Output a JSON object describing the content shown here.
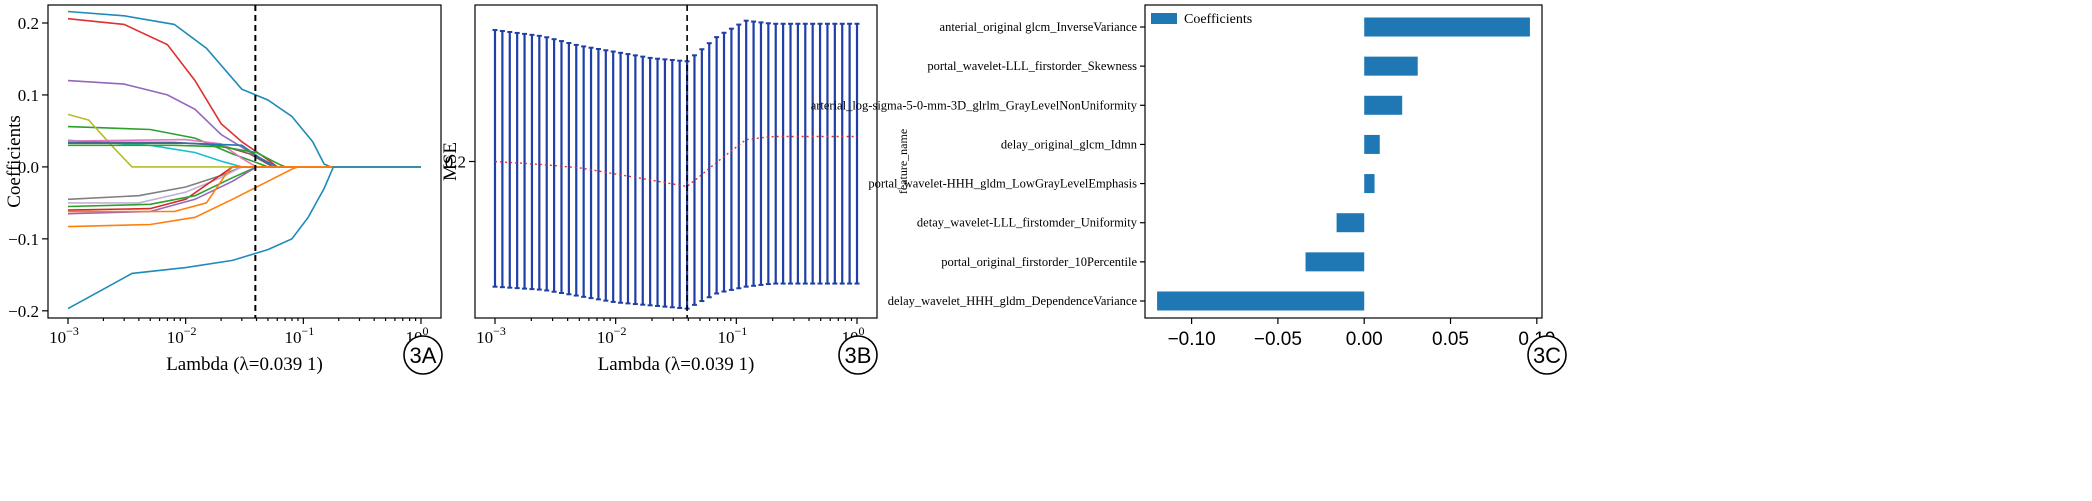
{
  "chart_data": [
    {
      "panel": "3A",
      "type": "line",
      "xscale": "log",
      "xlabel": "Lambda (λ=0.039 1)",
      "ylabel": "Coefficients",
      "xlim": [
        0.001,
        1
      ],
      "ylim": [
        -0.21,
        0.225
      ],
      "xticks": [
        {
          "value": 0.001,
          "base": "10",
          "exp": "−3"
        },
        {
          "value": 0.01,
          "base": "10",
          "exp": "−2"
        },
        {
          "value": 0.1,
          "base": "10",
          "exp": "−1"
        },
        {
          "value": 1,
          "base": "10",
          "exp": "0"
        }
      ],
      "yticks": [
        {
          "value": 0.2,
          "label": "0.2"
        },
        {
          "value": 0.1,
          "label": "0.1"
        },
        {
          "value": 0.0,
          "label": "0.0"
        },
        {
          "value": -0.1,
          "label": "−0.1"
        },
        {
          "value": -0.2,
          "label": "−0.2"
        }
      ],
      "vline": 0.0391,
      "series": [
        {
          "color": "#1f8bb8",
          "points": [
            [
              0.001,
              0.216
            ],
            [
              0.003,
              0.21
            ],
            [
              0.008,
              0.198
            ],
            [
              0.015,
              0.165
            ],
            [
              0.03,
              0.108
            ],
            [
              0.05,
              0.093
            ],
            [
              0.08,
              0.07
            ],
            [
              0.12,
              0.035
            ],
            [
              0.15,
              0.004
            ],
            [
              0.17,
              0
            ],
            [
              1,
              0
            ]
          ]
        },
        {
          "color": "#e03131",
          "points": [
            [
              0.001,
              0.206
            ],
            [
              0.003,
              0.198
            ],
            [
              0.007,
              0.17
            ],
            [
              0.012,
              0.12
            ],
            [
              0.02,
              0.06
            ],
            [
              0.03,
              0.035
            ],
            [
              0.05,
              0.01
            ],
            [
              0.06,
              0
            ],
            [
              1,
              0
            ]
          ]
        },
        {
          "color": "#9467bd",
          "points": [
            [
              0.001,
              0.12
            ],
            [
              0.003,
              0.115
            ],
            [
              0.007,
              0.1
            ],
            [
              0.012,
              0.08
            ],
            [
              0.02,
              0.045
            ],
            [
              0.04,
              0.015
            ],
            [
              0.06,
              0
            ],
            [
              1,
              0
            ]
          ]
        },
        {
          "color": "#2ca02c",
          "points": [
            [
              0.001,
              0.056
            ],
            [
              0.005,
              0.052
            ],
            [
              0.012,
              0.04
            ],
            [
              0.025,
              0.018
            ],
            [
              0.04,
              0.006
            ],
            [
              0.05,
              0
            ],
            [
              1,
              0
            ]
          ]
        },
        {
          "color": "#b5bd2a",
          "points": [
            [
              0.001,
              0.073
            ],
            [
              0.0015,
              0.065
            ],
            [
              0.0025,
              0.025
            ],
            [
              0.0035,
              0
            ],
            [
              1,
              0
            ]
          ]
        },
        {
          "color": "#17becf",
          "points": [
            [
              0.001,
              0.037
            ],
            [
              0.005,
              0.03
            ],
            [
              0.012,
              0.02
            ],
            [
              0.02,
              0.008
            ],
            [
              0.03,
              0
            ],
            [
              1,
              0
            ]
          ]
        },
        {
          "color": "#8c564b",
          "points": [
            [
              0.001,
              0.034
            ],
            [
              0.008,
              0.034
            ],
            [
              0.02,
              0.03
            ],
            [
              0.035,
              0.018
            ],
            [
              0.05,
              0.004
            ],
            [
              0.055,
              0
            ],
            [
              1,
              0
            ]
          ]
        },
        {
          "color": "#e377c2",
          "points": [
            [
              0.001,
              0.036
            ],
            [
              0.01,
              0.038
            ],
            [
              0.02,
              0.032
            ],
            [
              0.03,
              0.012
            ],
            [
              0.04,
              0
            ],
            [
              1,
              0
            ]
          ]
        },
        {
          "color": "#1f77b4",
          "points": [
            [
              0.001,
              0.033
            ],
            [
              0.01,
              0.033
            ],
            [
              0.03,
              0.03
            ],
            [
              0.045,
              0.01
            ],
            [
              0.06,
              0
            ],
            [
              1,
              0
            ]
          ]
        },
        {
          "color": "#2ca02c",
          "points": [
            [
              0.001,
              0.03
            ],
            [
              0.008,
              0.03
            ],
            [
              0.02,
              0.028
            ],
            [
              0.04,
              0.02
            ],
            [
              0.06,
              0.005
            ],
            [
              0.07,
              0
            ],
            [
              1,
              0
            ]
          ]
        },
        {
          "color": "#7f7f7f",
          "points": [
            [
              0.001,
              -0.045
            ],
            [
              0.004,
              -0.04
            ],
            [
              0.01,
              -0.028
            ],
            [
              0.02,
              -0.012
            ],
            [
              0.03,
              0
            ],
            [
              1,
              0
            ]
          ]
        },
        {
          "color": "#c5b0d5",
          "points": [
            [
              0.001,
              -0.05
            ],
            [
              0.004,
              -0.05
            ],
            [
              0.01,
              -0.035
            ],
            [
              0.02,
              -0.015
            ],
            [
              0.03,
              0
            ],
            [
              1,
              0
            ]
          ]
        },
        {
          "color": "#d62728",
          "points": [
            [
              0.001,
              -0.06
            ],
            [
              0.005,
              -0.058
            ],
            [
              0.01,
              -0.045
            ],
            [
              0.015,
              -0.025
            ],
            [
              0.025,
              0
            ],
            [
              1,
              0
            ]
          ]
        },
        {
          "color": "#2ca02c",
          "points": [
            [
              0.001,
              -0.055
            ],
            [
              0.005,
              -0.052
            ],
            [
              0.012,
              -0.04
            ],
            [
              0.025,
              -0.015
            ],
            [
              0.04,
              0
            ],
            [
              1,
              0
            ]
          ]
        },
        {
          "color": "#9467bd",
          "points": [
            [
              0.001,
              -0.065
            ],
            [
              0.005,
              -0.062
            ],
            [
              0.012,
              -0.045
            ],
            [
              0.025,
              -0.02
            ],
            [
              0.04,
              0
            ],
            [
              1,
              0
            ]
          ]
        },
        {
          "color": "#ff7f0e",
          "points": [
            [
              0.001,
              -0.062
            ],
            [
              0.008,
              -0.062
            ],
            [
              0.015,
              -0.05
            ],
            [
              0.022,
              -0.01
            ],
            [
              0.025,
              0
            ],
            [
              1,
              0
            ]
          ]
        },
        {
          "color": "#ff7f0e",
          "points": [
            [
              0.001,
              -0.083
            ],
            [
              0.005,
              -0.08
            ],
            [
              0.012,
              -0.07
            ],
            [
              0.025,
              -0.045
            ],
            [
              0.05,
              -0.02
            ],
            [
              0.08,
              -0.003
            ],
            [
              0.09,
              0
            ],
            [
              1,
              0
            ]
          ]
        },
        {
          "color": "#1f8bb8",
          "points": [
            [
              0.001,
              -0.197
            ],
            [
              0.002,
              -0.17
            ],
            [
              0.0035,
              -0.148
            ],
            [
              0.01,
              -0.14
            ],
            [
              0.025,
              -0.13
            ],
            [
              0.05,
              -0.115
            ],
            [
              0.08,
              -0.1
            ],
            [
              0.11,
              -0.07
            ],
            [
              0.15,
              -0.03
            ],
            [
              0.18,
              0
            ],
            [
              1,
              0
            ]
          ]
        }
      ]
    },
    {
      "panel": "3B",
      "type": "errorbar",
      "xscale": "log",
      "xlabel": "Lambda (λ=0.039 1)",
      "ylabel": "MSE",
      "xlim": [
        0.001,
        1
      ],
      "ylim": [
        0.15,
        0.25
      ],
      "xticks": [
        {
          "value": 0.001,
          "base": "10",
          "exp": "−3"
        },
        {
          "value": 0.01,
          "base": "10",
          "exp": "−2"
        },
        {
          "value": 0.1,
          "base": "10",
          "exp": "−1"
        },
        {
          "value": 1,
          "base": "10",
          "exp": "0"
        }
      ],
      "yticks": [
        {
          "value": 0.2,
          "label": "0.2"
        }
      ],
      "vline": 0.0391,
      "mean_color": "#e03131",
      "bar_color": "#1f3fa6",
      "points": [
        {
          "lam": 0.001,
          "mean": 0.2,
          "low": 0.16,
          "high": 0.242
        },
        {
          "lam": 0.0025,
          "mean": 0.199,
          "low": 0.159,
          "high": 0.24
        },
        {
          "lam": 0.005,
          "mean": 0.198,
          "low": 0.157,
          "high": 0.237
        },
        {
          "lam": 0.01,
          "mean": 0.196,
          "low": 0.155,
          "high": 0.235
        },
        {
          "lam": 0.02,
          "mean": 0.194,
          "low": 0.154,
          "high": 0.233
        },
        {
          "lam": 0.0391,
          "mean": 0.192,
          "low": 0.153,
          "high": 0.232
        },
        {
          "lam": 0.07,
          "mean": 0.2,
          "low": 0.158,
          "high": 0.24
        },
        {
          "lam": 0.12,
          "mean": 0.207,
          "low": 0.16,
          "high": 0.245
        },
        {
          "lam": 0.2,
          "mean": 0.208,
          "low": 0.161,
          "high": 0.244
        },
        {
          "lam": 0.5,
          "mean": 0.208,
          "low": 0.161,
          "high": 0.244
        },
        {
          "lam": 1,
          "mean": 0.208,
          "low": 0.161,
          "high": 0.244
        }
      ]
    },
    {
      "panel": "3C",
      "type": "bar",
      "orientation": "horizontal",
      "ylabel": "feature_name",
      "xlim": [
        -0.127,
        0.103
      ],
      "xticks": [
        {
          "value": -0.1,
          "label": "−0.10"
        },
        {
          "value": -0.05,
          "label": "−0.05"
        },
        {
          "value": 0.0,
          "label": "0.00"
        },
        {
          "value": 0.05,
          "label": "0.05"
        },
        {
          "value": 0.1,
          "label": "0.10"
        }
      ],
      "legend": "Coefficients",
      "legend_position": "top-left",
      "bar_color": "#1f77b4",
      "categories": [
        "anterial_original glcm_InverseVariance",
        "portal_wavelet-LLL_firstorder_Skewness",
        "arterial_log-sigma-5-0-mm-3D_glrlm_GrayLevelNonUniformity",
        "delay_original_glcm_Idmn",
        "portal_wavelet-HHH_gldm_LowGrayLevelEmphasis",
        "detay_wavelet-LLL_firstomder_Uniformity",
        "portal_original_firstorder_10Percentile",
        "delay_wavelet_HHH_gldm_DependenceVariance"
      ],
      "values": [
        0.096,
        0.031,
        0.022,
        0.009,
        0.006,
        -0.016,
        -0.034,
        -0.12
      ]
    }
  ],
  "badges": {
    "a": "3A",
    "b": "3B",
    "c": "3C"
  }
}
